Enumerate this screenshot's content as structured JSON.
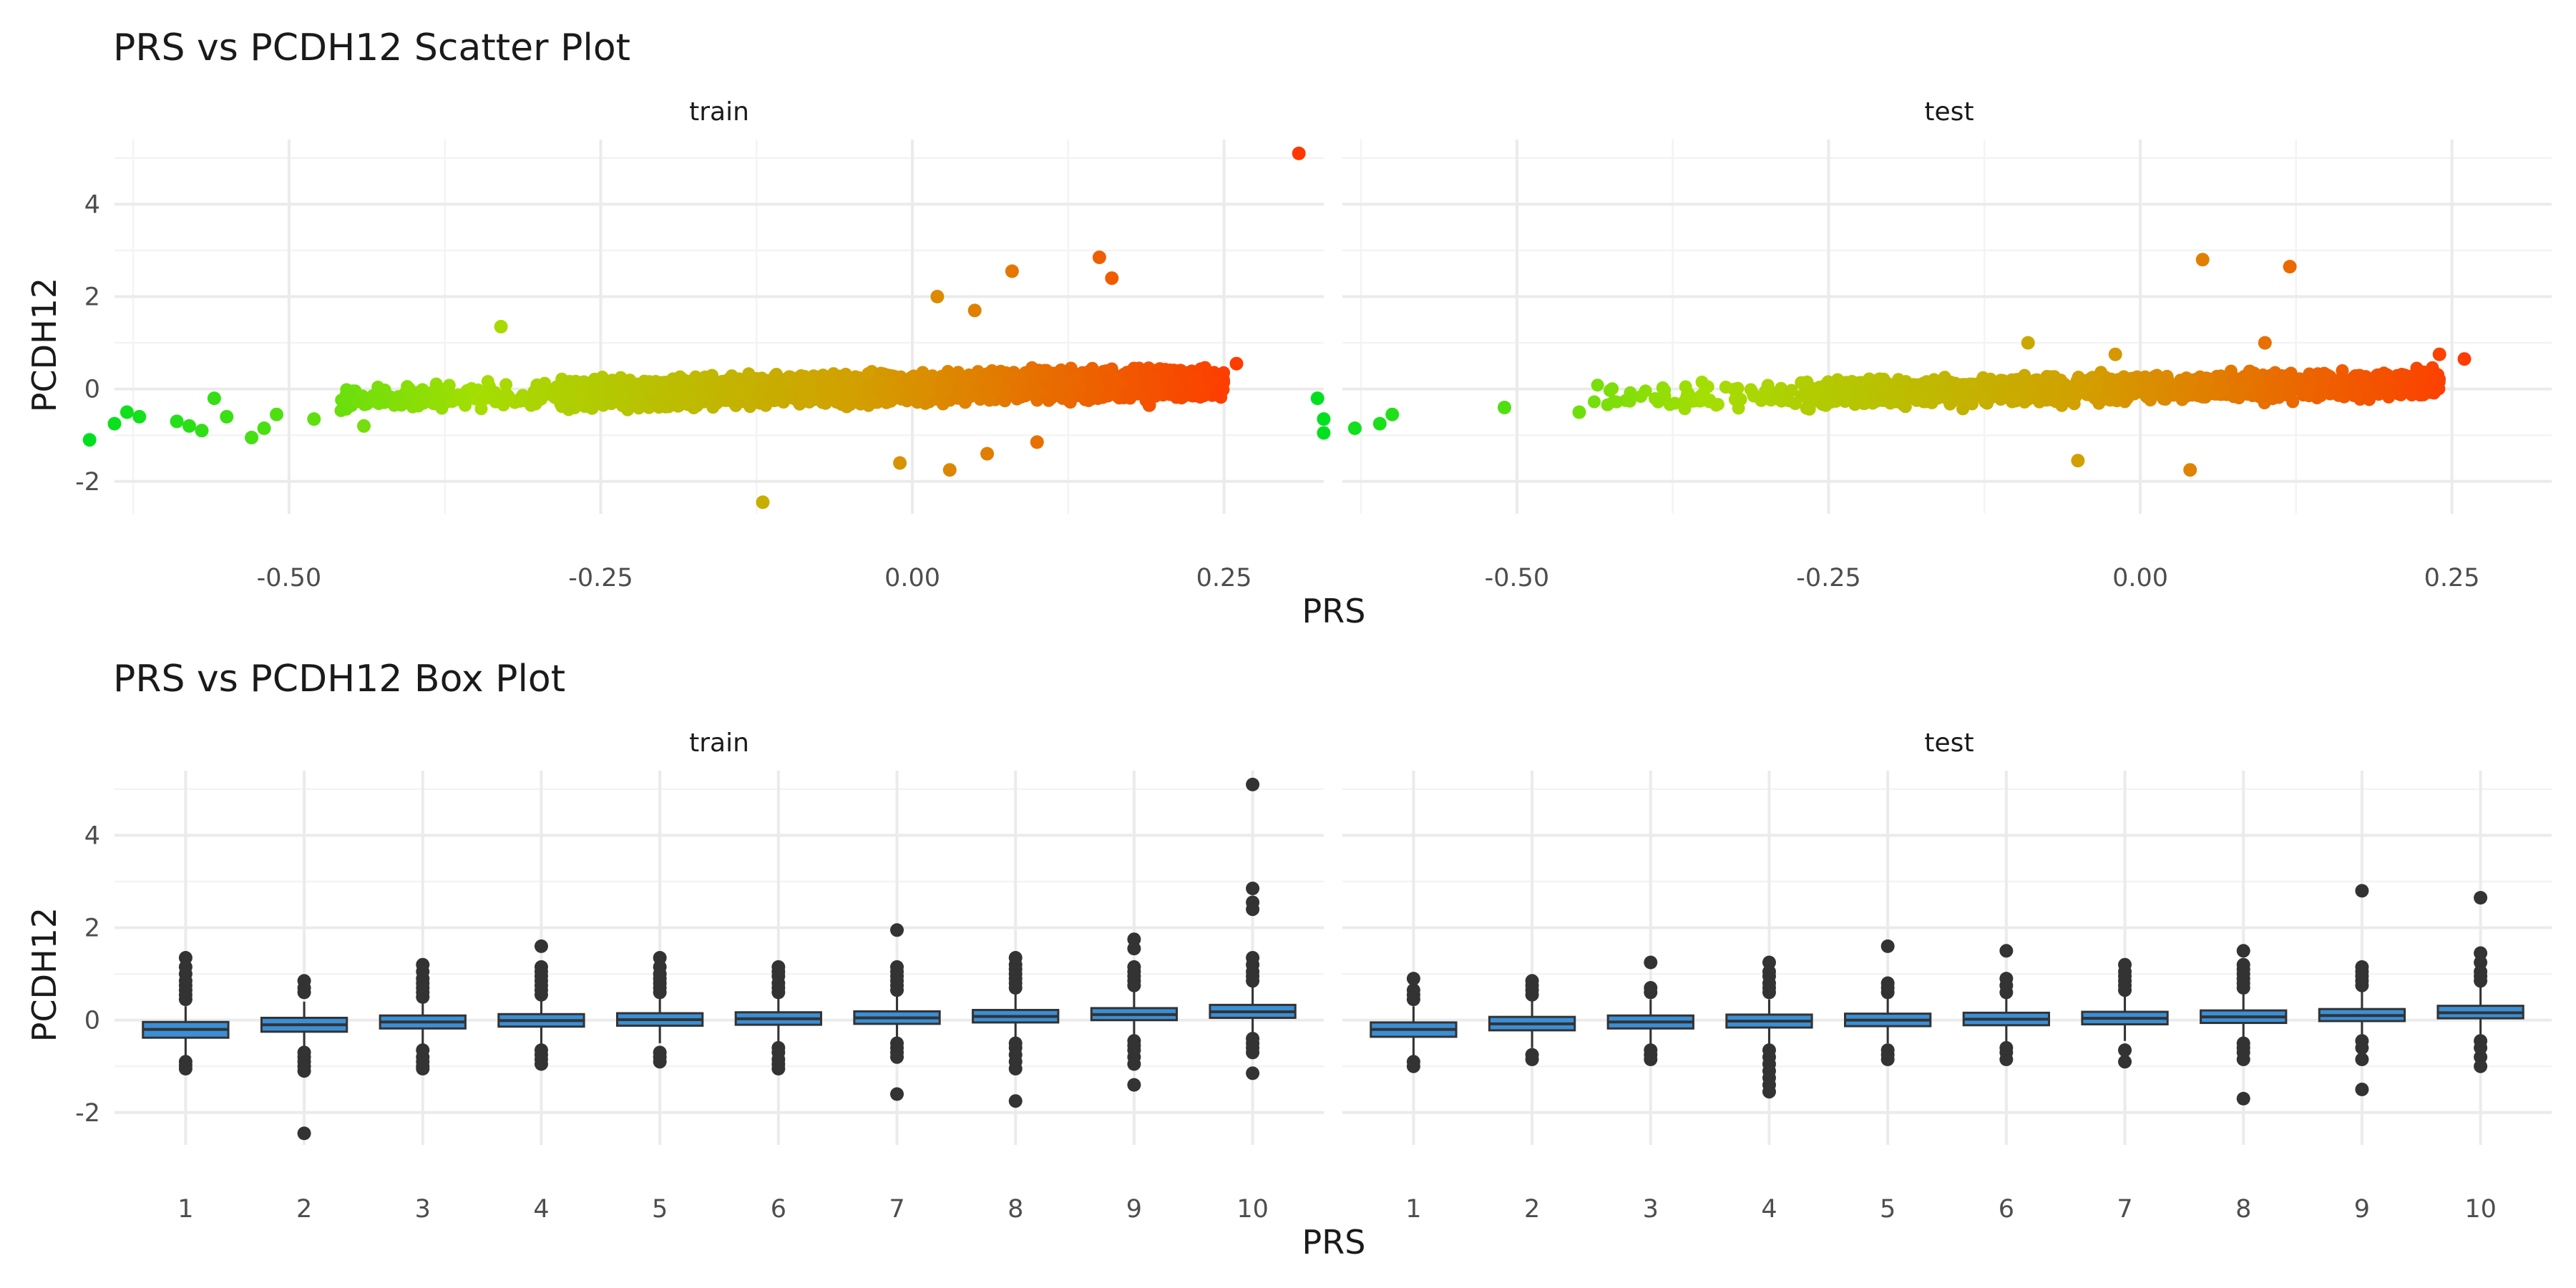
{
  "chart_data": [
    {
      "type": "scatter",
      "title": "PRS vs PCDH12 Scatter Plot",
      "xlabel": "PRS",
      "ylabel": "PCDH12",
      "xlim": [
        -0.64,
        0.33
      ],
      "ylim": [
        -2.7,
        5.4
      ],
      "xticks": [
        "-0.50",
        "-0.25",
        "0.00",
        "0.25"
      ],
      "xtick_values": [
        -0.5,
        -0.25,
        0.0,
        0.25
      ],
      "yticks": [
        "-2",
        "0",
        "2",
        "4"
      ],
      "ytick_values": [
        -2,
        0,
        2,
        4
      ],
      "grid": true,
      "color_gradient": [
        "#00e020",
        "#a4de02",
        "#d39e00",
        "#ff3800"
      ],
      "panels": [
        {
          "strip": "train",
          "outliers": [
            [
              -0.66,
              -1.1
            ],
            [
              -0.64,
              -0.75
            ],
            [
              -0.63,
              -0.5
            ],
            [
              -0.62,
              -0.6
            ],
            [
              -0.59,
              -0.7
            ],
            [
              -0.58,
              -0.8
            ],
            [
              -0.57,
              -0.9
            ],
            [
              -0.56,
              -0.2
            ],
            [
              -0.55,
              -0.6
            ],
            [
              -0.53,
              -1.05
            ],
            [
              -0.52,
              -0.85
            ],
            [
              -0.51,
              -0.55
            ],
            [
              -0.48,
              -0.65
            ],
            [
              -0.44,
              -0.8
            ],
            [
              -0.33,
              1.35
            ],
            [
              -0.12,
              -2.45
            ],
            [
              -0.01,
              -1.6
            ],
            [
              0.02,
              2.0
            ],
            [
              0.03,
              -1.75
            ],
            [
              0.05,
              1.7
            ],
            [
              0.06,
              -1.4
            ],
            [
              0.08,
              2.55
            ],
            [
              0.1,
              -1.15
            ],
            [
              0.15,
              2.85
            ],
            [
              0.16,
              2.4
            ],
            [
              0.19,
              -0.35
            ],
            [
              0.26,
              0.55
            ],
            [
              0.31,
              5.1
            ]
          ],
          "cloud": {
            "x_range": [
              -0.46,
              0.25
            ],
            "count": 3200,
            "slope": 2.0,
            "intercept": 0.28,
            "spread": 0.28
          }
        },
        {
          "strip": "test",
          "outliers": [
            [
              -0.66,
              -0.2
            ],
            [
              -0.655,
              -0.65
            ],
            [
              -0.655,
              -0.95
            ],
            [
              -0.63,
              -0.85
            ],
            [
              -0.61,
              -0.75
            ],
            [
              -0.6,
              -0.55
            ],
            [
              -0.51,
              -0.4
            ],
            [
              -0.45,
              -0.5
            ],
            [
              -0.09,
              1.0
            ],
            [
              -0.05,
              -1.55
            ],
            [
              -0.02,
              0.75
            ],
            [
              0.04,
              -1.75
            ],
            [
              0.05,
              2.8
            ],
            [
              0.1,
              1.0
            ],
            [
              0.12,
              2.65
            ],
            [
              0.21,
              0.3
            ],
            [
              0.24,
              0.75
            ],
            [
              0.26,
              0.65
            ]
          ],
          "cloud": {
            "x_range": [
              -0.44,
              0.24
            ],
            "count": 1600,
            "slope": 2.0,
            "intercept": 0.28,
            "spread": 0.26
          }
        }
      ]
    },
    {
      "type": "box",
      "title": "PRS vs PCDH12 Box Plot",
      "xlabel": "PRS",
      "ylabel": "PCDH12",
      "ylim": [
        -2.7,
        5.4
      ],
      "yticks": [
        "-2",
        "0",
        "2",
        "4"
      ],
      "ytick_values": [
        -2,
        0,
        2,
        4
      ],
      "categories": [
        "1",
        "2",
        "3",
        "4",
        "5",
        "6",
        "7",
        "8",
        "9",
        "10"
      ],
      "box_color": "#3a8fd6",
      "grid": true,
      "panels": [
        {
          "strip": "train",
          "boxes": [
            {
              "q1": -0.38,
              "median": -0.2,
              "q3": -0.04,
              "low": -0.82,
              "high": 0.3,
              "outliers": [
                0.45,
                0.55,
                0.65,
                0.75,
                0.85,
                1.0,
                1.15,
                1.35,
                -0.9,
                -0.98,
                -1.05
              ]
            },
            {
              "q1": -0.25,
              "median": -0.1,
              "q3": 0.05,
              "low": -0.6,
              "high": 0.4,
              "outliers": [
                0.6,
                0.7,
                0.85,
                -0.7,
                -0.8,
                -0.9,
                -1.0,
                -1.1,
                -2.45
              ]
            },
            {
              "q1": -0.18,
              "median": -0.04,
              "q3": 0.1,
              "low": -0.55,
              "high": 0.4,
              "outliers": [
                0.5,
                0.6,
                0.7,
                0.8,
                0.9,
                1.05,
                1.2,
                -0.65,
                -0.8,
                -0.9,
                -1.0,
                -1.05
              ]
            },
            {
              "q1": -0.14,
              "median": -0.01,
              "q3": 0.13,
              "low": -0.55,
              "high": 0.45,
              "outliers": [
                0.55,
                0.65,
                0.75,
                0.85,
                0.95,
                1.05,
                1.15,
                1.6,
                -0.65,
                -0.75,
                -0.85,
                -0.95
              ]
            },
            {
              "q1": -0.12,
              "median": 0.01,
              "q3": 0.15,
              "low": -0.5,
              "high": 0.5,
              "outliers": [
                0.6,
                0.7,
                0.8,
                0.9,
                1.0,
                1.15,
                1.35,
                -0.7,
                -0.8,
                -0.9
              ]
            },
            {
              "q1": -0.1,
              "median": 0.03,
              "q3": 0.17,
              "low": -0.5,
              "high": 0.5,
              "outliers": [
                0.6,
                0.7,
                0.8,
                0.95,
                1.05,
                1.15,
                -0.6,
                -0.7,
                -0.85,
                -0.95,
                -1.05
              ]
            },
            {
              "q1": -0.08,
              "median": 0.05,
              "q3": 0.19,
              "low": -0.45,
              "high": 0.55,
              "outliers": [
                0.65,
                0.75,
                0.85,
                0.95,
                1.05,
                1.15,
                1.95,
                -0.5,
                -0.6,
                -0.7,
                -0.8,
                -1.6
              ]
            },
            {
              "q1": -0.05,
              "median": 0.08,
              "q3": 0.22,
              "low": -0.45,
              "high": 0.6,
              "outliers": [
                0.7,
                0.8,
                0.9,
                1.0,
                1.1,
                1.2,
                1.35,
                -0.5,
                -0.6,
                -0.75,
                -0.9,
                -1.05,
                -1.75
              ]
            },
            {
              "q1": 0.0,
              "median": 0.12,
              "q3": 0.26,
              "low": -0.4,
              "high": 0.65,
              "outliers": [
                0.75,
                0.85,
                0.95,
                1.05,
                1.15,
                1.55,
                1.75,
                -0.45,
                -0.55,
                -0.65,
                -0.8,
                -0.95,
                -1.4
              ]
            },
            {
              "q1": 0.05,
              "median": 0.18,
              "q3": 0.33,
              "low": -0.35,
              "high": 0.75,
              "outliers": [
                0.85,
                0.95,
                1.05,
                1.2,
                1.35,
                2.4,
                2.55,
                2.85,
                5.1,
                -0.4,
                -0.5,
                -0.6,
                -0.7,
                -1.15
              ]
            }
          ]
        },
        {
          "strip": "test",
          "boxes": [
            {
              "q1": -0.36,
              "median": -0.2,
              "q3": -0.05,
              "low": -0.8,
              "high": 0.3,
              "outliers": [
                0.45,
                0.55,
                0.65,
                0.9,
                -0.9,
                -1.0
              ]
            },
            {
              "q1": -0.22,
              "median": -0.08,
              "q3": 0.07,
              "low": -0.6,
              "high": 0.45,
              "outliers": [
                0.55,
                0.65,
                0.75,
                0.85,
                -0.75,
                -0.85
              ]
            },
            {
              "q1": -0.18,
              "median": -0.04,
              "q3": 0.1,
              "low": -0.55,
              "high": 0.45,
              "outliers": [
                0.6,
                0.7,
                1.25,
                -0.65,
                -0.75,
                -0.85
              ]
            },
            {
              "q1": -0.16,
              "median": -0.02,
              "q3": 0.12,
              "low": -0.55,
              "high": 0.45,
              "outliers": [
                0.6,
                0.7,
                0.8,
                0.95,
                1.05,
                1.25,
                -0.65,
                -0.8,
                -0.95,
                -1.1,
                -1.25,
                -1.4,
                -1.55
              ]
            },
            {
              "q1": -0.13,
              "median": 0.0,
              "q3": 0.14,
              "low": -0.5,
              "high": 0.5,
              "outliers": [
                0.6,
                0.7,
                0.8,
                1.6,
                -0.65,
                -0.75,
                -0.85
              ]
            },
            {
              "q1": -0.11,
              "median": 0.02,
              "q3": 0.16,
              "low": -0.5,
              "high": 0.5,
              "outliers": [
                0.6,
                0.75,
                0.9,
                1.5,
                -0.6,
                -0.7,
                -0.85
              ]
            },
            {
              "q1": -0.09,
              "median": 0.04,
              "q3": 0.18,
              "low": -0.45,
              "high": 0.55,
              "outliers": [
                0.65,
                0.75,
                0.85,
                0.95,
                1.05,
                1.2,
                -0.65,
                -0.9
              ]
            },
            {
              "q1": -0.06,
              "median": 0.07,
              "q3": 0.21,
              "low": -0.45,
              "high": 0.6,
              "outliers": [
                0.7,
                0.8,
                0.9,
                1.0,
                1.1,
                1.2,
                1.5,
                -0.5,
                -0.6,
                -0.7,
                -0.85,
                -1.7
              ]
            },
            {
              "q1": -0.02,
              "median": 0.1,
              "q3": 0.24,
              "low": -0.4,
              "high": 0.65,
              "outliers": [
                0.75,
                0.85,
                0.95,
                1.05,
                1.15,
                2.8,
                -0.45,
                -0.6,
                -0.85,
                -1.5
              ]
            },
            {
              "q1": 0.04,
              "median": 0.16,
              "q3": 0.31,
              "low": -0.35,
              "high": 0.75,
              "outliers": [
                0.85,
                0.95,
                1.05,
                1.25,
                1.45,
                2.65,
                -0.45,
                -0.6,
                -0.8,
                -1.0
              ]
            }
          ]
        }
      ]
    }
  ]
}
